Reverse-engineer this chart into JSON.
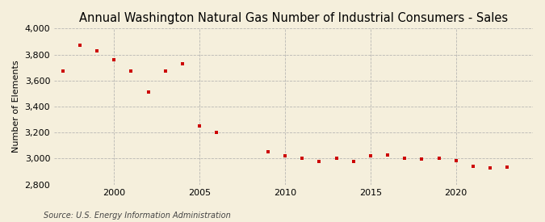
{
  "title": "Annual Washington Natural Gas Number of Industrial Consumers - Sales",
  "ylabel": "Number of Elements",
  "xlabel": "",
  "source": "Source: U.S. Energy Information Administration",
  "background_color": "#f5efdc",
  "plot_background_color": "#f5efdc",
  "marker_color": "#cc0000",
  "marker": "s",
  "marker_size": 3.5,
  "xlim": [
    1996.5,
    2024.5
  ],
  "ylim": [
    2800,
    4000
  ],
  "yticks": [
    2800,
    3000,
    3200,
    3400,
    3600,
    3800,
    4000
  ],
  "xticks": [
    2000,
    2005,
    2010,
    2015,
    2020
  ],
  "grid_color": "#aaaaaa",
  "title_fontsize": 10.5,
  "tick_fontsize": 8,
  "ylabel_fontsize": 8,
  "source_fontsize": 7,
  "years": [
    1997,
    1998,
    1999,
    2000,
    2001,
    2002,
    2003,
    2004,
    2005,
    2006,
    2009,
    2010,
    2011,
    2012,
    2013,
    2014,
    2015,
    2016,
    2017,
    2018,
    2019,
    2020,
    2021,
    2022,
    2023
  ],
  "values": [
    3670,
    3870,
    3830,
    3760,
    3670,
    3510,
    3670,
    3730,
    3250,
    3200,
    3050,
    3020,
    3000,
    2975,
    3000,
    2975,
    3020,
    3030,
    3005,
    2995,
    3000,
    2985,
    2940,
    2930,
    2935
  ]
}
